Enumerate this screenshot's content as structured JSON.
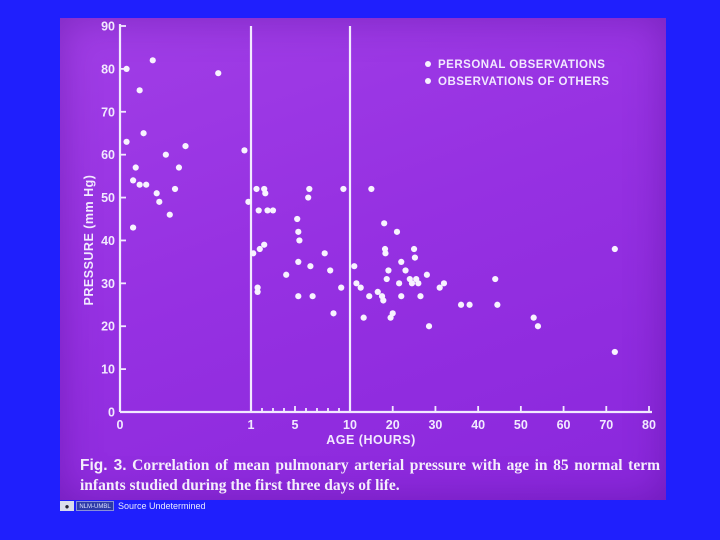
{
  "slide": {
    "background": "#9a35e2",
    "page_background": "#1f1ffd"
  },
  "chart_data": {
    "type": "scatter",
    "title": "",
    "xlabel": "AGE (HOURS)",
    "ylabel": "PRESSURE (mm Hg)",
    "ylim": [
      0,
      90
    ],
    "y_ticks": [
      0,
      10,
      20,
      30,
      40,
      50,
      60,
      70,
      80,
      90
    ],
    "x_ticks": [
      0,
      1,
      5,
      10,
      20,
      30,
      40,
      50,
      60,
      70,
      80
    ],
    "x_scale_note": "piecewise: 0-1 h, 1-10 h, 10-80 h",
    "vertical_lines_at": [
      1,
      10
    ],
    "grid": false,
    "legend_position": "top-right",
    "legend": [
      {
        "label": "PERSONAL OBSERVATIONS",
        "marker": "filled-dot"
      },
      {
        "label": "OBSERVATIONS OF OTHERS",
        "marker": "open-dot"
      }
    ],
    "points": [
      [
        0.05,
        80
      ],
      [
        0.15,
        75
      ],
      [
        0.25,
        82
      ],
      [
        0.75,
        79
      ],
      [
        0.05,
        63
      ],
      [
        0.1,
        54
      ],
      [
        0.12,
        57
      ],
      [
        0.15,
        53
      ],
      [
        0.2,
        53
      ],
      [
        0.28,
        51
      ],
      [
        0.3,
        49
      ],
      [
        0.35,
        60
      ],
      [
        0.42,
        52
      ],
      [
        0.45,
        57
      ],
      [
        0.5,
        62
      ],
      [
        0.18,
        65
      ],
      [
        0.1,
        43
      ],
      [
        0.38,
        46
      ],
      [
        0.95,
        61
      ],
      [
        0.98,
        49
      ],
      [
        1.2,
        37
      ],
      [
        1.5,
        52
      ],
      [
        1.7,
        47
      ],
      [
        1.8,
        38
      ],
      [
        2.2,
        52
      ],
      [
        2.3,
        51
      ],
      [
        2.5,
        47
      ],
      [
        3.0,
        47
      ],
      [
        2.2,
        39
      ],
      [
        1.6,
        29
      ],
      [
        1.6,
        28
      ],
      [
        4.2,
        32
      ],
      [
        5.2,
        45
      ],
      [
        5.3,
        42
      ],
      [
        5.4,
        40
      ],
      [
        5.3,
        35
      ],
      [
        5.3,
        27
      ],
      [
        6.3,
        52
      ],
      [
        6.2,
        50
      ],
      [
        6.4,
        34
      ],
      [
        6.6,
        27
      ],
      [
        7.7,
        37
      ],
      [
        8.2,
        33
      ],
      [
        8.5,
        23
      ],
      [
        9.2,
        29
      ],
      [
        9.4,
        52
      ],
      [
        11,
        34
      ],
      [
        11.5,
        30
      ],
      [
        12.5,
        29
      ],
      [
        13.2,
        22
      ],
      [
        14.5,
        27
      ],
      [
        15,
        52
      ],
      [
        16.5,
        28
      ],
      [
        17.5,
        27
      ],
      [
        17.8,
        26
      ],
      [
        18,
        44
      ],
      [
        18.2,
        38
      ],
      [
        18.3,
        37
      ],
      [
        18.6,
        31
      ],
      [
        19,
        33
      ],
      [
        19.5,
        22
      ],
      [
        20,
        23
      ],
      [
        21,
        42
      ],
      [
        21.5,
        30
      ],
      [
        22,
        35
      ],
      [
        22,
        27
      ],
      [
        23,
        33
      ],
      [
        24,
        31
      ],
      [
        24.5,
        30
      ],
      [
        25,
        38
      ],
      [
        25.2,
        36
      ],
      [
        25.5,
        31
      ],
      [
        26,
        30
      ],
      [
        26.5,
        27
      ],
      [
        28,
        32
      ],
      [
        28.5,
        20
      ],
      [
        31,
        29
      ],
      [
        32,
        30
      ],
      [
        36,
        25
      ],
      [
        38,
        25
      ],
      [
        44,
        31
      ],
      [
        44.5,
        25
      ],
      [
        53,
        22
      ],
      [
        54,
        20
      ],
      [
        72,
        38
      ],
      [
        72,
        14
      ]
    ]
  },
  "caption": {
    "fig_label": "Fig. 3.",
    "text": " Correlation of mean pulmonary arterial pressure with age in 85 normal term infants studied during the first three days of life."
  },
  "source": {
    "logo_text": "NLM-UMBL",
    "text": "Source Undetermined"
  }
}
